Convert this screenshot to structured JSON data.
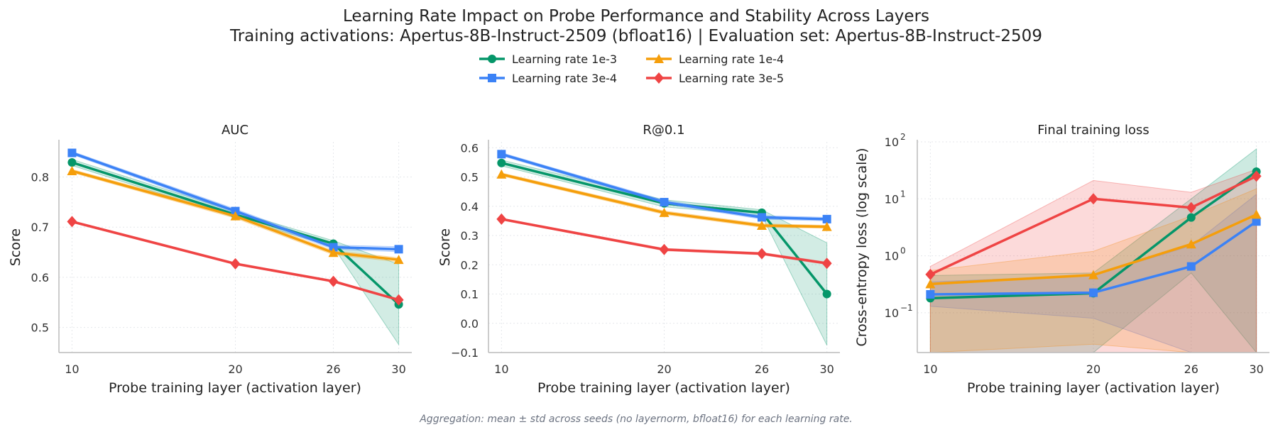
{
  "title_line1": "Learning Rate Impact on Probe Performance and Stability Across Layers",
  "title_line2": "Training activations: Apertus-8B-Instruct-2509 (bfloat16) | Evaluation set: Apertus-8B-Instruct-2509",
  "footnote": "Aggregation: mean ± std across seeds (no layernorm, bfloat16) for each learning rate.",
  "legend": {
    "placement": "top-center",
    "entries": [
      "Learning rate 1e-3",
      "Learning rate 3e-4",
      "Learning rate 1e-4",
      "Learning rate 3e-5"
    ]
  },
  "colors": {
    "lr_1e-3": "#059669",
    "lr_3e-4": "#3b82f6",
    "lr_1e-4": "#f59e0b",
    "lr_3e-5": "#ef4444"
  },
  "markers": {
    "lr_1e-3": "circle",
    "lr_3e-4": "square",
    "lr_1e-4": "triangle",
    "lr_3e-5": "diamond"
  },
  "chart_data": [
    {
      "type": "line",
      "title": "AUC",
      "xlabel": "Probe training layer (activation layer)",
      "ylabel": "Score",
      "x": [
        10,
        20,
        26,
        30
      ],
      "x_ticks": [
        "10",
        "20",
        "26",
        "30"
      ],
      "xlim": [
        9.2,
        30.8
      ],
      "ylim": [
        0.45,
        0.87
      ],
      "y_ticks": [
        "0.5",
        "0.6",
        "0.7",
        "0.8"
      ],
      "y_tick_values": [
        0.5,
        0.6,
        0.7,
        0.8
      ],
      "grid": true,
      "series": [
        {
          "name": "Learning rate 1e-3",
          "key": "lr_1e-3",
          "values": [
            0.829,
            0.725,
            0.667,
            0.546
          ],
          "std": [
            0.006,
            0.006,
            0.006,
            0.08
          ]
        },
        {
          "name": "Learning rate 3e-4",
          "key": "lr_3e-4",
          "values": [
            0.848,
            0.732,
            0.66,
            0.656
          ],
          "std": [
            0.003,
            0.004,
            0.004,
            0.005
          ]
        },
        {
          "name": "Learning rate 1e-4",
          "key": "lr_1e-4",
          "values": [
            0.812,
            0.722,
            0.649,
            0.635
          ],
          "std": [
            0.003,
            0.004,
            0.004,
            0.004
          ]
        },
        {
          "name": "Learning rate 3e-5",
          "key": "lr_3e-5",
          "values": [
            0.711,
            0.627,
            0.592,
            0.555
          ],
          "std": [
            0.002,
            0.002,
            0.002,
            0.002
          ]
        }
      ]
    },
    {
      "type": "line",
      "title": "R@0.1",
      "xlabel": "Probe training layer (activation layer)",
      "ylabel": "Score",
      "x": [
        10,
        20,
        26,
        30
      ],
      "x_ticks": [
        "10",
        "20",
        "26",
        "30"
      ],
      "xlim": [
        9.2,
        30.8
      ],
      "ylim": [
        -0.1,
        0.62
      ],
      "y_ticks": [
        "−0.1",
        "0.0",
        "0.1",
        "0.2",
        "0.3",
        "0.4",
        "0.5",
        "0.6"
      ],
      "y_tick_values": [
        -0.1,
        0.0,
        0.1,
        0.2,
        0.3,
        0.4,
        0.5,
        0.6
      ],
      "grid": true,
      "series": [
        {
          "name": "Learning rate 1e-3",
          "key": "lr_1e-3",
          "values": [
            0.548,
            0.41,
            0.378,
            0.1
          ],
          "std": [
            0.01,
            0.012,
            0.01,
            0.175
          ]
        },
        {
          "name": "Learning rate 3e-4",
          "key": "lr_3e-4",
          "values": [
            0.578,
            0.414,
            0.362,
            0.356
          ],
          "std": [
            0.005,
            0.006,
            0.006,
            0.006
          ]
        },
        {
          "name": "Learning rate 1e-4",
          "key": "lr_1e-4",
          "values": [
            0.509,
            0.378,
            0.334,
            0.33
          ],
          "std": [
            0.005,
            0.006,
            0.006,
            0.005
          ]
        },
        {
          "name": "Learning rate 3e-5",
          "key": "lr_3e-5",
          "values": [
            0.356,
            0.252,
            0.238,
            0.205
          ],
          "std": [
            0.003,
            0.004,
            0.004,
            0.004
          ]
        }
      ]
    },
    {
      "type": "line",
      "title": "Final training loss",
      "xlabel": "Probe training layer (activation layer)",
      "ylabel": "Cross-entropy loss (log scale)",
      "y_scale": "log",
      "x": [
        10,
        20,
        26,
        30
      ],
      "x_ticks": [
        "10",
        "20",
        "26",
        "30"
      ],
      "xlim": [
        9.2,
        30.8
      ],
      "ylim": [
        0.02,
        100
      ],
      "y_ticks": [
        "10",
        "10",
        "10",
        "10"
      ],
      "y_tick_exponents": [
        "−1",
        "0",
        "1",
        "2"
      ],
      "y_tick_values": [
        0.1,
        1,
        10,
        100
      ],
      "grid": true,
      "series": [
        {
          "name": "Learning rate 1e-3",
          "key": "lr_1e-3",
          "values": [
            0.18,
            0.22,
            4.7,
            30
          ],
          "band_low": [
            0.001,
            0.001,
            0.5,
            0.001
          ],
          "band_high": [
            0.45,
            0.5,
            10,
            75
          ]
        },
        {
          "name": "Learning rate 3e-4",
          "key": "lr_3e-4",
          "values": [
            0.21,
            0.225,
            0.65,
            4.0
          ],
          "band_low": [
            0.13,
            0.08,
            0.001,
            0.001
          ],
          "band_high": [
            0.35,
            0.45,
            1.5,
            12
          ]
        },
        {
          "name": "Learning rate 1e-4",
          "key": "lr_1e-4",
          "values": [
            0.32,
            0.46,
            1.6,
            5.3
          ],
          "band_low": [
            0.001,
            0.028,
            0.001,
            0.001
          ],
          "band_high": [
            0.55,
            1.2,
            5,
            15
          ]
        },
        {
          "name": "Learning rate 3e-5",
          "key": "lr_3e-5",
          "values": [
            0.47,
            10,
            7,
            25
          ],
          "band_low": [
            0.001,
            0.001,
            0.001,
            0.001
          ],
          "band_high": [
            0.65,
            21,
            13,
            33
          ]
        }
      ]
    }
  ]
}
